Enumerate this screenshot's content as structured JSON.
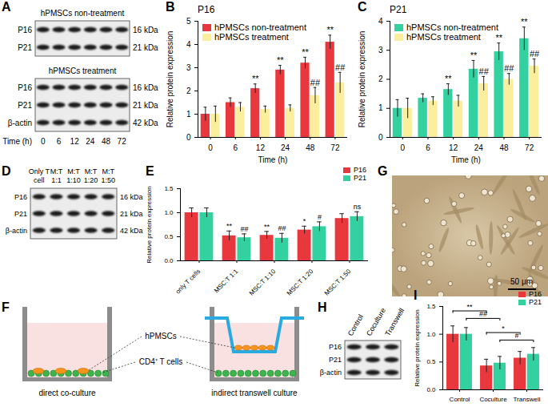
{
  "chart_data": [
    {
      "panel": "B",
      "type": "bar",
      "title": "P16",
      "x_label": "Time (h)",
      "y_label": "Relative protein expression",
      "categories": [
        0,
        6,
        12,
        24,
        48,
        72
      ],
      "series": [
        {
          "name": "hPMSCs non-treatment",
          "color": "#e8383d",
          "values": [
            1.0,
            1.5,
            2.1,
            2.9,
            3.2,
            4.1
          ],
          "errors": [
            0.3,
            0.2,
            0.2,
            0.2,
            0.25,
            0.3
          ],
          "significance": [
            null,
            null,
            "**",
            "**",
            "**",
            "**"
          ]
        },
        {
          "name": "hPMSCs treatment",
          "color": "#fbee9c",
          "values": [
            1.0,
            1.3,
            1.2,
            1.25,
            1.8,
            2.35
          ],
          "errors": [
            0.35,
            0.2,
            0.15,
            0.15,
            0.35,
            0.45
          ],
          "significance": [
            null,
            null,
            null,
            null,
            "##",
            "##"
          ]
        }
      ],
      "ylim": [
        0,
        5
      ],
      "yticks": [
        0,
        1,
        2,
        3,
        4,
        5
      ],
      "legend": "top-left"
    },
    {
      "panel": "C",
      "type": "bar",
      "title": "P21",
      "x_label": "Time (h)",
      "y_label": "Relative protein expression",
      "categories": [
        0,
        6,
        12,
        24,
        48,
        72
      ],
      "series": [
        {
          "name": "hPMSCs non-treatment",
          "color": "#33d1a0",
          "values": [
            1.0,
            1.35,
            1.65,
            2.35,
            2.95,
            3.4
          ],
          "errors": [
            0.3,
            0.15,
            0.2,
            0.3,
            0.3,
            0.4
          ],
          "significance": [
            null,
            null,
            "**",
            "**",
            "**",
            "**"
          ]
        },
        {
          "name": "hPMSCs treatment",
          "color": "#fbee9c",
          "values": [
            1.0,
            1.25,
            1.25,
            1.85,
            2.0,
            2.45
          ],
          "errors": [
            0.35,
            0.15,
            0.2,
            0.25,
            0.2,
            0.25
          ],
          "significance": [
            null,
            null,
            null,
            "##",
            "##",
            "##"
          ]
        }
      ],
      "ylim": [
        0,
        4
      ],
      "yticks": [
        0,
        1,
        2,
        3,
        4
      ],
      "legend": "top-left"
    },
    {
      "panel": "E",
      "type": "bar",
      "y_label": "Relative protein expression",
      "categories": [
        "only T cells",
        "MSC:T 1:1",
        "MSC:T 1:10",
        "MSC:T 1:20",
        "MSC:T 1:50"
      ],
      "series": [
        {
          "name": "P16",
          "color": "#e8383d",
          "values": [
            1.0,
            0.52,
            0.53,
            0.64,
            0.88
          ],
          "errors": [
            0.1,
            0.1,
            0.08,
            0.08,
            0.1
          ],
          "significance": [
            null,
            "**",
            "**",
            "*",
            null
          ]
        },
        {
          "name": "P21",
          "color": "#33d1a0",
          "values": [
            1.0,
            0.48,
            0.47,
            0.71,
            0.92
          ],
          "errors": [
            0.1,
            0.08,
            0.1,
            0.1,
            0.1
          ],
          "significance": [
            null,
            "##",
            "##",
            "#",
            "ns"
          ]
        }
      ],
      "ylim": [
        0,
        1.5
      ],
      "yticks": [
        {
          "value": 0,
          "label": "0.0"
        },
        {
          "value": 0.5,
          "label": "0.5"
        },
        {
          "value": 1,
          "label": "1.0"
        },
        {
          "value": 1.5,
          "label": "1.5"
        }
      ],
      "legend": "top-right"
    },
    {
      "panel": "I",
      "type": "bar",
      "y_label": "Relative protein expression",
      "categories": [
        "Control",
        "Coculture",
        "Transwell"
      ],
      "series": [
        {
          "name": "P16",
          "color": "#e8383d",
          "values": [
            1.0,
            0.43,
            0.57
          ],
          "errors": [
            0.15,
            0.12,
            0.12
          ]
        },
        {
          "name": "P21",
          "color": "#33d1a0",
          "values": [
            1.0,
            0.48,
            0.64
          ],
          "errors": [
            0.12,
            0.12,
            0.12
          ]
        }
      ],
      "comparisons": [
        {
          "from": "Control",
          "to": "Coculture",
          "series": "P16",
          "label": "**"
        },
        {
          "from": "Control",
          "to": "Coculture",
          "series": "P21",
          "label": "##"
        },
        {
          "from": "Coculture",
          "to": "Transwell",
          "series": "P16",
          "label": "*"
        },
        {
          "from": "Coculture",
          "to": "Transwell",
          "series": "P21",
          "label": "#"
        }
      ],
      "ylim": [
        0,
        1.5
      ],
      "yticks": [
        {
          "value": 0,
          "label": "0.0"
        },
        {
          "value": 0.5,
          "label": "0.5"
        },
        {
          "value": 1,
          "label": "1.0"
        },
        {
          "value": 1.5,
          "label": "1.5"
        }
      ],
      "legend": "top-right"
    }
  ],
  "blots": [
    {
      "panel": "A",
      "groups": [
        {
          "title": "hPMSCs non-treatment",
          "rows": [
            {
              "label": "P16",
              "size": "16 kDa"
            },
            {
              "label": "P21",
              "size": "21 kDa"
            }
          ]
        },
        {
          "title": "hPMSCs treatment",
          "rows": [
            {
              "label": "P16",
              "size": "16 kDa"
            },
            {
              "label": "P21",
              "size": "21 kDa"
            },
            {
              "label": "β-actin",
              "size": "42 kDa"
            }
          ]
        }
      ],
      "lanes_title": "Time (h)",
      "lanes": [
        "0",
        "6",
        "12",
        "24",
        "48",
        "72"
      ]
    },
    {
      "panel": "D",
      "columns": [
        "Only T cell",
        "M:T 1:1",
        "M:T 1:10",
        "M:T 1:20",
        "M:T 1:50"
      ],
      "rows": [
        {
          "label": "P16",
          "size": "16 kDa"
        },
        {
          "label": "P21",
          "size": "21 kDa"
        },
        {
          "label": "β-actin",
          "size": "42 kDa"
        }
      ]
    },
    {
      "panel": "H",
      "columns": [
        "Control",
        "Coculture",
        "Transwell"
      ],
      "rows": [
        {
          "label": "P16"
        },
        {
          "label": "P21"
        },
        {
          "label": "β-actin"
        }
      ]
    }
  ],
  "diagram": {
    "panel": "F",
    "wells": [
      "direct co-culture",
      "indirect transwell culture"
    ],
    "labels": [
      "hPMSCs",
      "CD4⁺ T cells"
    ]
  },
  "image": {
    "panel": "G",
    "scale_bar": "50 μm"
  }
}
